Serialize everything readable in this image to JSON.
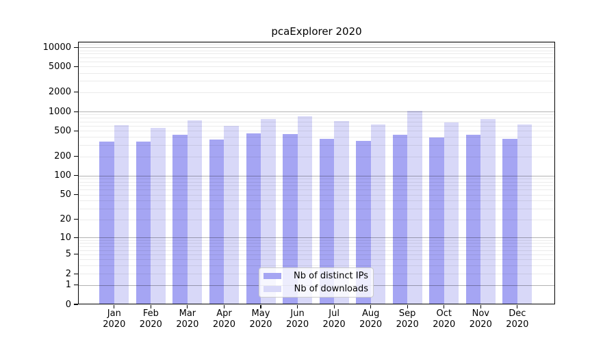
{
  "chart_data": {
    "type": "bar",
    "title": "pcaExplorer 2020",
    "x_categories": [
      "Jan",
      "Feb",
      "Mar",
      "Apr",
      "May",
      "Jun",
      "Jul",
      "Aug",
      "Sep",
      "Oct",
      "Nov",
      "Dec"
    ],
    "x_year_label": "2020",
    "series": [
      {
        "name": "Nb of distinct IPs",
        "color": "#a5a5f3",
        "values": [
          338,
          343,
          433,
          364,
          458,
          450,
          379,
          352,
          433,
          395,
          439,
          379
        ]
      },
      {
        "name": "Nb of downloads",
        "color": "#d8d8f8",
        "values": [
          616,
          557,
          731,
          595,
          766,
          845,
          712,
          635,
          1021,
          678,
          761,
          635
        ]
      }
    ],
    "y_scale": "log1p",
    "ylim": [
      0,
      12230
    ],
    "y_ticks": [
      10000,
      5000,
      2000,
      1000,
      500,
      200,
      100,
      50,
      20,
      10,
      5,
      2,
      1,
      0
    ],
    "y_major_gridlines": [
      1,
      10,
      100,
      1000,
      10000
    ],
    "y_minor_extra_gridlines": [
      11000,
      12000
    ],
    "grid": true,
    "legend": {
      "position": "inside-bottom-center"
    }
  }
}
